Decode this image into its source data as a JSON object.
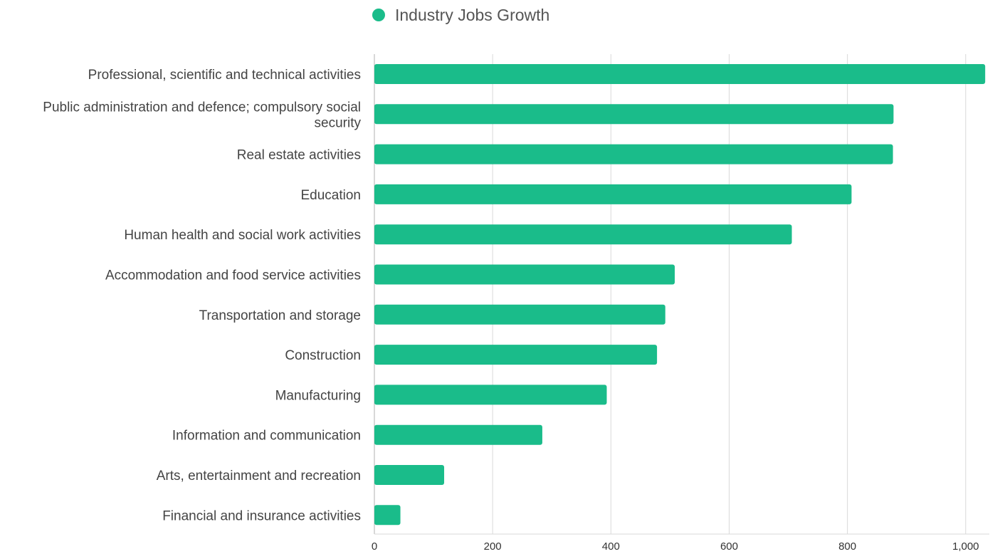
{
  "chart_data": {
    "type": "bar",
    "orientation": "horizontal",
    "categories": [
      "Professional, scientific and technical activities",
      "Public administration and defence; compulsory social security",
      "Real estate activities",
      "Education",
      "Human health and social work activities",
      "Accommodation and food service activities",
      "Transportation and storage",
      "Construction",
      "Manufacturing",
      "Information and communication",
      "Arts, entertainment and recreation",
      "Financial and insurance activities"
    ],
    "series": [
      {
        "name": "Industry Jobs Growth",
        "color": "#1abc8a",
        "values": [
          1033,
          878,
          877,
          807,
          706,
          508,
          492,
          478,
          393,
          284,
          118,
          44
        ]
      }
    ],
    "xlim": [
      0,
      1040
    ],
    "x_ticks": [
      0,
      200,
      400,
      600,
      800,
      1000
    ],
    "x_tick_labels": [
      "0",
      "200",
      "400",
      "600",
      "800",
      "1,000"
    ],
    "grid": true,
    "legend": "top-center"
  }
}
